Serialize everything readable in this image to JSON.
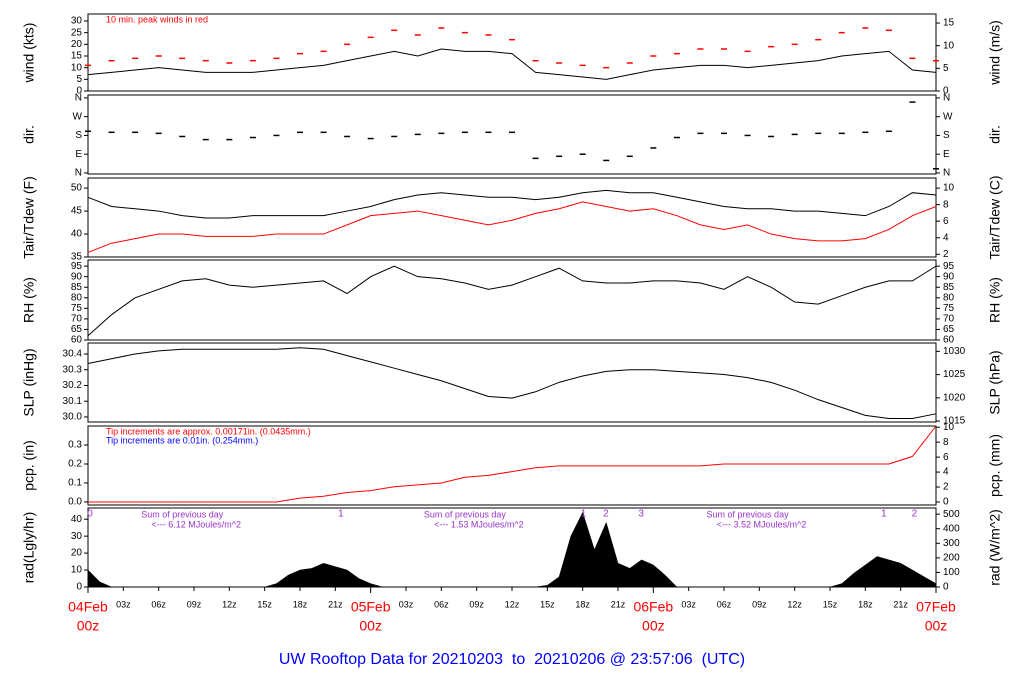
{
  "title": "UW Rooftop Data for 20210203  to  20210206 @ 23:57:06  (UTC)",
  "chart_data": [
    {
      "type": "line",
      "ylabel": "wind (kts)",
      "y2label": "wind (m/s)",
      "ylim": [
        0,
        33
      ],
      "yticks": [
        0,
        5,
        10,
        15,
        20,
        25,
        30
      ],
      "y2lim": [
        0,
        17
      ],
      "y2ticks": [
        0,
        5,
        10,
        15
      ],
      "annotations": [
        {
          "text": "10 min. peak winds in red",
          "color": "#ff0000"
        }
      ],
      "x": [
        0,
        2,
        4,
        6,
        8,
        10,
        12,
        14,
        16,
        18,
        20,
        22,
        24,
        26,
        28,
        30,
        32,
        34,
        36,
        38,
        40,
        42,
        44,
        46,
        48,
        50,
        52,
        54,
        56,
        58,
        60,
        62,
        64,
        66,
        68,
        70,
        72
      ],
      "series": [
        {
          "style": "line",
          "color": "#000000",
          "values": [
            7,
            8,
            9,
            10,
            9,
            8,
            8,
            8,
            9,
            10,
            11,
            13,
            15,
            17,
            15,
            18,
            17,
            17,
            16,
            8,
            7,
            6,
            5,
            7,
            9,
            10,
            11,
            11,
            10,
            11,
            12,
            13,
            15,
            16,
            17,
            9,
            8
          ]
        },
        {
          "style": "dash",
          "color": "#ff0000",
          "values": [
            11,
            13,
            14,
            15,
            14,
            13,
            12,
            13,
            14,
            16,
            17,
            20,
            23,
            26,
            24,
            27,
            25,
            24,
            22,
            13,
            12,
            11,
            10,
            12,
            15,
            16,
            18,
            18,
            17,
            19,
            20,
            22,
            25,
            27,
            26,
            14,
            13
          ]
        }
      ]
    },
    {
      "type": "line",
      "ylabel": "dir.",
      "y2label": "dir.",
      "ylim": [
        -5,
        374
      ],
      "yticks": [
        {
          "value": 0,
          "label": "N"
        },
        {
          "value": 90,
          "label": "E"
        },
        {
          "value": 180,
          "label": "S"
        },
        {
          "value": 270,
          "label": "W"
        },
        {
          "value": 360,
          "label": "N"
        }
      ],
      "y2lim": [
        -5,
        374
      ],
      "y2ticks": [
        {
          "value": 0,
          "label": "N"
        },
        {
          "value": 90,
          "label": "E"
        },
        {
          "value": 180,
          "label": "S"
        },
        {
          "value": 270,
          "label": "W"
        },
        {
          "value": 360,
          "label": "N"
        }
      ],
      "x": [
        0,
        2,
        4,
        6,
        8,
        10,
        12,
        14,
        16,
        18,
        20,
        22,
        24,
        26,
        28,
        30,
        32,
        34,
        36,
        38,
        40,
        42,
        44,
        46,
        48,
        50,
        52,
        54,
        56,
        58,
        60,
        62,
        64,
        66,
        68,
        70,
        72
      ],
      "series": [
        {
          "style": "dash",
          "color": "#000000",
          "values": [
            200,
            195,
            195,
            190,
            175,
            160,
            160,
            170,
            180,
            195,
            195,
            175,
            165,
            175,
            185,
            190,
            195,
            195,
            195,
            70,
            80,
            90,
            60,
            80,
            120,
            170,
            190,
            190,
            180,
            175,
            185,
            190,
            190,
            195,
            200,
            340,
            20
          ]
        }
      ]
    },
    {
      "type": "line",
      "ylabel": "Tair/Tdew (F)",
      "y2label": "Tair/Tdew (C)",
      "ylim": [
        35,
        52.2
      ],
      "yticks": [
        35,
        40,
        45,
        50
      ],
      "y2lim": [
        1.67,
        11.22
      ],
      "y2ticks": [
        2,
        4,
        6,
        8,
        10
      ],
      "x": [
        0,
        2,
        4,
        6,
        8,
        10,
        12,
        14,
        16,
        18,
        20,
        22,
        24,
        26,
        28,
        30,
        32,
        34,
        36,
        38,
        40,
        42,
        44,
        46,
        48,
        50,
        52,
        54,
        56,
        58,
        60,
        62,
        64,
        66,
        68,
        70,
        72
      ],
      "series": [
        {
          "style": "line",
          "color": "#000000",
          "values": [
            48,
            46,
            45.5,
            45,
            44,
            43.5,
            43.5,
            44,
            44,
            44,
            44,
            45,
            46,
            47.5,
            48.5,
            49,
            48.5,
            48,
            48,
            47.5,
            48,
            49,
            49.5,
            49,
            49,
            48,
            47,
            46,
            45.5,
            45.5,
            45,
            45,
            44.5,
            44,
            46,
            49,
            48.5
          ]
        },
        {
          "style": "line",
          "color": "#ff0000",
          "values": [
            36,
            38,
            39,
            40,
            40,
            39.5,
            39.5,
            39.5,
            40,
            40,
            40,
            42,
            44,
            44.5,
            45,
            44,
            43,
            42,
            43,
            44.5,
            45.5,
            47,
            46,
            45,
            45.5,
            44,
            42,
            41,
            42,
            40,
            39,
            38.5,
            38.5,
            39,
            41,
            44,
            46
          ]
        }
      ]
    },
    {
      "type": "line",
      "ylabel": "RH (%)",
      "y2label": "RH (%)",
      "ylim": [
        60,
        97.9
      ],
      "yticks": [
        60,
        65,
        70,
        75,
        80,
        85,
        90,
        95
      ],
      "y2lim": [
        60,
        97.9
      ],
      "y2ticks": [
        60,
        65,
        70,
        75,
        80,
        85,
        90,
        95
      ],
      "x": [
        0,
        2,
        4,
        6,
        8,
        10,
        12,
        14,
        16,
        18,
        20,
        22,
        24,
        26,
        28,
        30,
        32,
        34,
        36,
        38,
        40,
        42,
        44,
        46,
        48,
        50,
        52,
        54,
        56,
        58,
        60,
        62,
        64,
        66,
        68,
        70,
        72
      ],
      "series": [
        {
          "style": "line",
          "color": "#000000",
          "values": [
            62,
            72,
            80,
            84,
            88,
            89,
            86,
            85,
            86,
            87,
            88,
            82,
            90,
            95,
            90,
            89,
            87,
            84,
            86,
            90,
            94,
            88,
            87,
            87,
            88,
            88,
            87,
            84,
            90,
            85,
            78,
            77,
            81,
            85,
            88,
            88,
            95
          ]
        }
      ]
    },
    {
      "type": "line",
      "ylabel": "SLP (inHg)",
      "y2label": "SLP (hPa)",
      "ylim": [
        29.968,
        30.47
      ],
      "yticks": [
        {
          "value": 30,
          "label": "30.0"
        },
        30.1,
        30.2,
        30.3,
        30.4
      ],
      "y2lim": [
        1014.8,
        1031.8
      ],
      "y2ticks": [
        1015,
        1020,
        1025,
        1030
      ],
      "x": [
        0,
        2,
        4,
        6,
        8,
        10,
        12,
        14,
        16,
        18,
        20,
        22,
        24,
        26,
        28,
        30,
        32,
        34,
        36,
        38,
        40,
        42,
        44,
        46,
        48,
        50,
        52,
        54,
        56,
        58,
        60,
        62,
        64,
        66,
        68,
        70,
        72
      ],
      "series": [
        {
          "style": "line",
          "color": "#000000",
          "values": [
            30.34,
            30.37,
            30.4,
            30.42,
            30.43,
            30.43,
            30.43,
            30.43,
            30.43,
            30.44,
            30.43,
            30.39,
            30.35,
            30.31,
            30.27,
            30.23,
            30.18,
            30.13,
            30.12,
            30.16,
            30.22,
            30.26,
            30.29,
            30.3,
            30.3,
            30.29,
            30.28,
            30.27,
            30.25,
            30.22,
            30.17,
            30.11,
            30.06,
            30.01,
            29.99,
            29.99,
            30.02
          ]
        }
      ]
    },
    {
      "type": "line",
      "ylabel": "pcp. (in)",
      "y2label": "pcp. (mm)",
      "ylim": [
        -0.016,
        0.4
      ],
      "yticks": [
        {
          "value": 0,
          "label": "0.0"
        },
        0.1,
        0.2,
        0.3
      ],
      "y2lim": [
        -0.4,
        10.16
      ],
      "y2ticks": [
        0,
        2,
        4,
        6,
        8,
        10
      ],
      "annotations": [
        {
          "text": "Tip increments are approx. 0.00171in. (0.0435mm.)",
          "color": "#ff0000"
        },
        {
          "text": "Tip increments are 0.01in. (0.254mm.)",
          "color": "#0000ff"
        }
      ],
      "x": [
        0,
        2,
        4,
        6,
        8,
        10,
        12,
        14,
        16,
        18,
        20,
        22,
        24,
        26,
        28,
        30,
        32,
        34,
        36,
        38,
        40,
        42,
        44,
        46,
        48,
        50,
        52,
        54,
        56,
        58,
        60,
        62,
        64,
        66,
        68,
        70,
        72
      ],
      "series": [
        {
          "style": "line",
          "color": "#ff0000",
          "values": [
            0,
            0,
            0,
            0,
            0,
            0,
            0,
            0,
            0,
            0.02,
            0.03,
            0.05,
            0.06,
            0.08,
            0.09,
            0.1,
            0.13,
            0.14,
            0.16,
            0.18,
            0.19,
            0.19,
            0.19,
            0.19,
            0.19,
            0.19,
            0.19,
            0.2,
            0.2,
            0.2,
            0.2,
            0.2,
            0.2,
            0.2,
            0.2,
            0.24,
            0.4
          ]
        }
      ]
    },
    {
      "type": "area",
      "ylabel": "rad(Lgly/hr)",
      "y2label": "rad (W/m^2)",
      "ylim": [
        0,
        46.6
      ],
      "yticks": [
        0,
        10,
        20,
        30,
        40
      ],
      "y2lim": [
        0,
        542
      ],
      "y2ticks": [
        0,
        100,
        200,
        300,
        400,
        500
      ],
      "xlim": [
        0,
        72
      ],
      "xticks": [
        {
          "value": 3,
          "label": "03z"
        },
        {
          "value": 6,
          "label": "06z"
        },
        {
          "value": 9,
          "label": "09z"
        },
        {
          "value": 12,
          "label": "12z"
        },
        {
          "value": 15,
          "label": "15z"
        },
        {
          "value": 18,
          "label": "18z"
        },
        {
          "value": 21,
          "label": "21z"
        },
        {
          "value": 27,
          "label": "03z"
        },
        {
          "value": 30,
          "label": "06z"
        },
        {
          "value": 33,
          "label": "09z"
        },
        {
          "value": 36,
          "label": "12z"
        },
        {
          "value": 39,
          "label": "15z"
        },
        {
          "value": 42,
          "label": "18z"
        },
        {
          "value": 45,
          "label": "21z"
        },
        {
          "value": 51,
          "label": "03z"
        },
        {
          "value": 54,
          "label": "06z"
        },
        {
          "value": 57,
          "label": "09z"
        },
        {
          "value": 60,
          "label": "12z"
        },
        {
          "value": 63,
          "label": "15z"
        },
        {
          "value": 66,
          "label": "18z"
        },
        {
          "value": 69,
          "label": "21z"
        }
      ],
      "day_ticks": [
        {
          "value": 0,
          "label": "04Feb",
          "sublabel": "00z"
        },
        {
          "value": 24,
          "label": "05Feb",
          "sublabel": "00z"
        },
        {
          "value": 48,
          "label": "06Feb",
          "sublabel": "00z"
        },
        {
          "value": 72,
          "label": "07Feb",
          "sublabel": "00z"
        }
      ],
      "markers": [
        {
          "x": 0,
          "text": "0"
        },
        {
          "x": 21.3,
          "text": "1"
        },
        {
          "x": 41.9,
          "text": "1"
        },
        {
          "x": 43.8,
          "text": "2"
        },
        {
          "x": 46.8,
          "text": "3"
        },
        {
          "x": 67.4,
          "text": "1"
        },
        {
          "x": 70,
          "text": "2"
        }
      ],
      "daily_sums": [
        {
          "x": 8,
          "text": "Sum of previous day",
          "total": "<--- 6.12 MJoules/m^2"
        },
        {
          "x": 32,
          "text": "Sum of previous day",
          "total": "<--- 1.53 MJoules/m^2"
        },
        {
          "x": 56,
          "text": "Sum of previous day",
          "total": "<--- 3.52 MJoules/m^2"
        }
      ],
      "x": [
        0,
        1,
        2,
        3,
        4,
        5,
        6,
        7,
        8,
        9,
        10,
        11,
        12,
        13,
        14,
        15,
        16,
        17,
        18,
        19,
        20,
        21,
        22,
        23,
        24,
        25,
        26,
        27,
        28,
        29,
        30,
        31,
        32,
        33,
        34,
        35,
        36,
        37,
        38,
        39,
        40,
        41,
        42,
        43,
        44,
        45,
        46,
        47,
        48,
        49,
        50,
        51,
        52,
        53,
        54,
        55,
        56,
        57,
        58,
        59,
        60,
        61,
        62,
        63,
        64,
        65,
        66,
        67,
        68,
        69,
        70,
        71,
        72
      ],
      "series": [
        {
          "style": "area",
          "color": "#000000",
          "values": [
            10,
            3,
            0,
            0,
            0,
            0,
            0,
            0,
            0,
            0,
            0,
            0,
            0,
            0,
            0,
            0,
            2,
            7,
            10,
            11,
            14,
            12,
            10,
            5,
            2,
            0,
            0,
            0,
            0,
            0,
            0,
            0,
            0,
            0,
            0,
            0,
            0,
            0,
            0,
            1,
            6,
            30,
            44,
            22,
            38,
            14,
            11,
            16,
            13,
            7,
            0,
            0,
            0,
            0,
            0,
            0,
            0,
            0,
            0,
            0,
            0,
            0,
            0,
            0,
            2,
            8,
            13,
            18,
            16,
            14,
            10,
            6,
            2
          ]
        }
      ]
    }
  ]
}
